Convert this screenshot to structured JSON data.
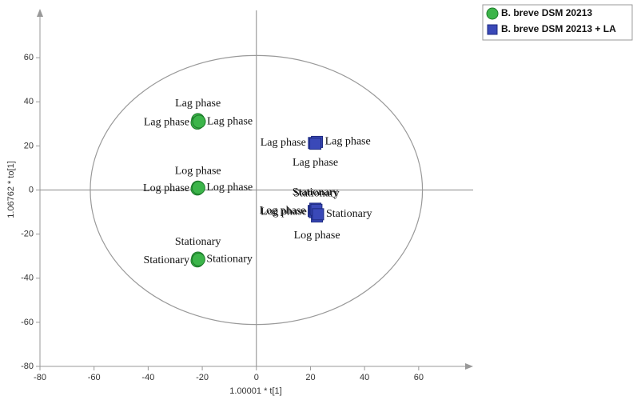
{
  "chart_data": {
    "type": "scatter",
    "x_label": "1.00001 * t[1]",
    "y_label": "1.06762 * to[1]",
    "xlim": [
      -80,
      76
    ],
    "ylim": [
      -80,
      80
    ],
    "xticks": [
      -80,
      -60,
      -40,
      -20,
      0,
      20,
      40,
      60
    ],
    "yticks": [
      -80,
      -60,
      -40,
      -20,
      0,
      20,
      40,
      60
    ],
    "ellipse": {
      "rx": 61.4,
      "ry": 61
    },
    "legend": "top-right",
    "series": [
      {
        "name": "B. breve DSM 20213",
        "color": "#3cb54a",
        "marker": "circle",
        "x": [
          -21.6,
          -21.8,
          -21.2,
          -21.6,
          -21.8,
          -21.4,
          -21.6,
          -21.8,
          -21.4
        ],
        "values": [
          31.8,
          30.5,
          31,
          1.2,
          0.6,
          1,
          -31,
          -32,
          -31.5
        ],
        "labels": [
          "Lag phase",
          "Lag phase",
          "Lag phase",
          "Log phase",
          "Log phase",
          "Log phase",
          "Stationary",
          "Stationary",
          "Stationary"
        ]
      },
      {
        "name": "B. breve DSM 20213 + LA",
        "color": "#3a49b8",
        "marker": "square",
        "x": [
          21.3,
          22.4,
          21.8,
          21.2,
          21.6,
          22.4,
          21.8,
          22.2,
          22.8
        ],
        "values": [
          21.3,
          21.8,
          21,
          -9.5,
          -10,
          -12,
          -8.5,
          -9,
          -11
        ],
        "labels": [
          "Lag phase",
          "Lag phase",
          "Lag phase",
          "Log phase",
          "Log phase",
          "Log phase",
          "Stationary",
          "Stationary",
          "Stationary"
        ]
      }
    ]
  }
}
